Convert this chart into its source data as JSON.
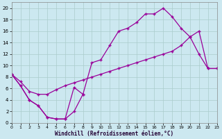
{
  "background_color": "#cce8f0",
  "grid_color": "#aacccc",
  "line_color": "#990099",
  "xlabel": "Windchill (Refroidissement éolien,°C)",
  "xlim": [
    0,
    23
  ],
  "ylim": [
    0,
    21
  ],
  "xticks": [
    0,
    1,
    2,
    3,
    4,
    5,
    6,
    7,
    8,
    9,
    10,
    11,
    12,
    13,
    14,
    15,
    16,
    17,
    18,
    19,
    20,
    21,
    22,
    23
  ],
  "yticks": [
    0,
    2,
    4,
    6,
    8,
    10,
    12,
    14,
    16,
    18,
    20
  ],
  "curve_top": {
    "x": [
      0,
      1,
      2,
      3,
      4,
      5,
      6,
      7,
      8,
      9,
      10,
      11,
      12,
      13,
      14,
      15,
      16,
      17,
      18,
      19,
      20,
      21,
      22,
      23
    ],
    "y": [
      8.5,
      6.5,
      4.0,
      3.0,
      1.0,
      0.7,
      0.7,
      2.0,
      5.0,
      10.5,
      11.0,
      13.5,
      16.0,
      16.5,
      17.5,
      19.0,
      19.0,
      20.0,
      18.5,
      16.5,
      15.0,
      12.0,
      9.5,
      9.5
    ]
  },
  "curve_mid": {
    "x": [
      0,
      1,
      2,
      3,
      4,
      5,
      6,
      7,
      8,
      9,
      10,
      11,
      12,
      13,
      14,
      15,
      16,
      17,
      18,
      19,
      20,
      21,
      22,
      23
    ],
    "y": [
      8.5,
      7.2,
      5.5,
      5.0,
      5.0,
      5.8,
      6.5,
      7.0,
      7.5,
      8.0,
      8.5,
      9.0,
      9.5,
      10.0,
      10.5,
      11.0,
      11.5,
      12.0,
      12.5,
      13.5,
      15.0,
      16.0,
      9.5,
      9.5
    ]
  },
  "curve_bot": {
    "x": [
      0,
      1,
      2,
      3,
      4,
      5,
      6,
      7,
      8
    ],
    "y": [
      8.5,
      6.5,
      4.0,
      3.0,
      1.0,
      0.7,
      0.7,
      6.2,
      5.0
    ]
  }
}
